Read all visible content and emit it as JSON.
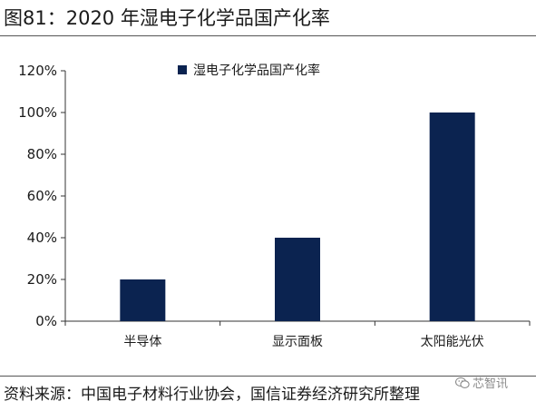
{
  "title": "图81：2020 年湿电子化学品国产化率",
  "source": "资料来源：中国电子材料行业协会，国信证券经济研究所整理",
  "watermark": "芯智讯",
  "colors": {
    "bar": "#0b2350",
    "axis": "#333333",
    "rule": "#555555"
  },
  "chart_data": {
    "type": "bar",
    "categories": [
      "半导体",
      "显示面板",
      "太阳能光伏"
    ],
    "series": [
      {
        "name": "湿电子化学品国产化率",
        "values": [
          20,
          40,
          100
        ]
      }
    ],
    "ylim": [
      0,
      120
    ],
    "yticks": [
      0,
      20,
      40,
      60,
      80,
      100,
      120
    ],
    "ytick_labels": [
      "0%",
      "20%",
      "40%",
      "60%",
      "80%",
      "100%",
      "120%"
    ],
    "legend_position": "top-center",
    "grid": false
  }
}
